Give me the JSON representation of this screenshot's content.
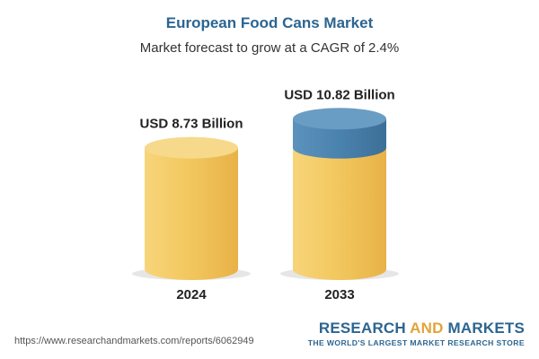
{
  "header": {
    "title": "European Food Cans Market",
    "subtitle": "Market forecast to grow at a CAGR of 2.4%"
  },
  "chart_data": {
    "type": "bar",
    "title": "European Food Cans Market",
    "subtitle": "Market forecast to grow at a CAGR of 2.4%",
    "categories": [
      "2024",
      "2033"
    ],
    "values": [
      8.73,
      10.82
    ],
    "value_labels": [
      "USD 8.73 Billion",
      "USD 10.82 Billion"
    ],
    "unit": "USD Billion",
    "style": "3d-cylinder",
    "colors": {
      "body": "#f2c55c",
      "top": "#f6d98a",
      "growth_segment": "#4f88b4",
      "growth_top": "#6a9dc4"
    },
    "grid": false
  },
  "footer": {
    "source_url": "https://www.researchandmarkets.com/reports/6062949",
    "brand_part1": "RESEARCH ",
    "brand_part2": "AND",
    "brand_part3": " MARKETS",
    "brand_tagline": "THE WORLD'S LARGEST MARKET RESEARCH STORE"
  }
}
